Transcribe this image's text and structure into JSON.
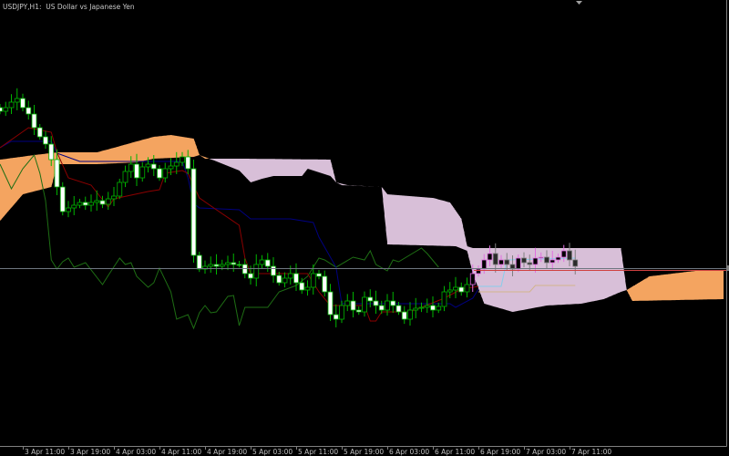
{
  "window": {
    "title": "USDJPY,H1:  US Dollar vs Japanese Yen"
  },
  "colors": {
    "background": "#000000",
    "kumo_bullish": "#f4a460",
    "kumo_bearish": "#d8bfd8",
    "tenkan": "#8b0000",
    "kijun": "#000080",
    "chikou": "#1e6e14",
    "bull_candle_outline": "#00b400",
    "bear_candle_fill": "#ffffff",
    "grid_axis": "#808080",
    "bid_line": "#6e7680",
    "red_line": "#d04040",
    "light_blue_line": "#87ceeb",
    "tan_line": "#d2b48c"
  },
  "chart_data": {
    "type": "candlestick",
    "symbol": "USDJPY",
    "timeframe": "H1",
    "title": "USDJPY,H1:  US Dollar vs Japanese Yen",
    "x_tick_labels": [
      "3 Apr 11:00",
      "3 Apr 19:00",
      "4 Apr 03:00",
      "4 Apr 11:00",
      "4 Apr 19:00",
      "5 Apr 03:00",
      "5 Apr 11:00",
      "5 Apr 19:00",
      "6 Apr 03:00",
      "6 Apr 11:00",
      "6 Apr 19:00",
      "7 Apr 03:00",
      "7 Apr 11:00"
    ],
    "ylim": [
      105.1,
      110.0
    ],
    "grid": false,
    "candles": {
      "first_bar": "3 Apr 07:00",
      "close": [
        108.78,
        108.82,
        108.88,
        108.92,
        108.82,
        108.75,
        108.6,
        108.5,
        108.42,
        108.25,
        107.95,
        107.68,
        107.72,
        107.75,
        107.78,
        107.75,
        107.78,
        107.8,
        107.76,
        107.82,
        107.85,
        108.0,
        108.12,
        108.2,
        108.05,
        108.17,
        108.2,
        108.15,
        108.05,
        108.15,
        108.18,
        108.22,
        108.28,
        108.15,
        107.2,
        107.05,
        107.08,
        107.1,
        107.08,
        107.1,
        107.12,
        107.1,
        107.1,
        107.0,
        106.95,
        107.1,
        107.15,
        107.08,
        106.98,
        106.9,
        106.95,
        107.0,
        106.9,
        106.82,
        106.85,
        107.0,
        106.97,
        106.8,
        106.55,
        106.5,
        106.65,
        106.7,
        106.6,
        106.58,
        106.74,
        106.7,
        106.65,
        106.6,
        106.7,
        106.65,
        106.58,
        106.5,
        106.6,
        106.62,
        106.63,
        106.65,
        106.6,
        106.64,
        106.8,
        106.82,
        106.85,
        106.8,
        106.88,
        107.0,
        107.05,
        107.15,
        107.22,
        107.1,
        107.15,
        107.1,
        107.05,
        107.17,
        107.12,
        107.1,
        107.17,
        107.18,
        107.12,
        107.15,
        107.18,
        107.25,
        107.15,
        107.08
      ]
    },
    "series": {
      "senkou_span_a": [
        [
          "3 Apr 07:00",
          108.25
        ],
        [
          "3 Apr 13:00",
          108.3
        ],
        [
          "3 Apr 17:00",
          108.33
        ],
        [
          "4 Apr 00:00",
          108.33
        ],
        [
          "4 Apr 03:00",
          108.38
        ],
        [
          "4 Apr 07:00",
          108.45
        ],
        [
          "4 Apr 10:00",
          108.5
        ],
        [
          "4 Apr 13:00",
          108.52
        ],
        [
          "4 Apr 17:00",
          108.48
        ],
        [
          "4 Apr 18:00",
          108.3
        ],
        [
          "4 Apr 21:00",
          108.23
        ],
        [
          "5 Apr 01:00",
          108.13
        ],
        [
          "5 Apr 03:00",
          108.0
        ],
        [
          "5 Apr 05:00",
          108.04
        ],
        [
          "5 Apr 07:00",
          108.07
        ],
        [
          "5 Apr 12:00",
          108.07
        ],
        [
          "5 Apr 13:00",
          108.15
        ],
        [
          "5 Apr 14:00",
          108.13
        ],
        [
          "5 Apr 17:00",
          108.07
        ],
        [
          "5 Apr 18:00",
          108.0
        ],
        [
          "5 Apr 19:00",
          107.97
        ],
        [
          "6 Apr 02:00",
          107.95
        ],
        [
          "6 Apr 03:00",
          107.32
        ],
        [
          "6 Apr 15:00",
          107.3
        ],
        [
          "6 Apr 17:00",
          107.25
        ],
        [
          "6 Apr 18:00",
          107.0
        ],
        [
          "6 Apr 20:00",
          106.67
        ],
        [
          "7 Apr 01:00",
          106.58
        ],
        [
          "7 Apr 07:00",
          106.65
        ],
        [
          "7 Apr 13:00",
          106.67
        ],
        [
          "7 Apr 17:00",
          106.72
        ],
        [
          "7 Apr 20:00",
          106.8
        ],
        [
          "7 Apr 21:00",
          106.82
        ],
        [
          "8 Apr 01:00",
          106.97
        ],
        [
          "8 Apr 05:00",
          107.0
        ],
        [
          "8 Apr 09:00",
          107.03
        ],
        [
          "8 Apr 14:00",
          107.03
        ]
      ],
      "senkou_span_b": [
        [
          "3 Apr 07:00",
          107.58
        ],
        [
          "3 Apr 11:00",
          107.87
        ],
        [
          "3 Apr 16:00",
          107.95
        ],
        [
          "3 Apr 17:00",
          108.2
        ],
        [
          "4 Apr 00:00",
          108.2
        ],
        [
          "4 Apr 07:00",
          108.22
        ],
        [
          "4 Apr 10:00",
          108.26
        ],
        [
          "4 Apr 17:00",
          108.28
        ],
        [
          "4 Apr 18:00",
          108.3
        ],
        [
          "4 Apr 19:00",
          108.26
        ],
        [
          "5 Apr 02:00",
          108.26
        ],
        [
          "5 Apr 17:00",
          108.25
        ],
        [
          "5 Apr 18:00",
          108.0
        ],
        [
          "5 Apr 20:00",
          107.97
        ],
        [
          "6 Apr 02:00",
          107.95
        ],
        [
          "6 Apr 03:00",
          107.87
        ],
        [
          "6 Apr 11:00",
          107.83
        ],
        [
          "6 Apr 14:00",
          107.78
        ],
        [
          "6 Apr 16:00",
          107.6
        ],
        [
          "6 Apr 17:00",
          107.3
        ],
        [
          "6 Apr 18:00",
          107.28
        ],
        [
          "7 Apr 20:00",
          107.28
        ],
        [
          "7 Apr 21:00",
          106.82
        ],
        [
          "7 Apr 22:00",
          106.7
        ],
        [
          "8 Apr 14:00",
          106.72
        ]
      ],
      "tenkan_sen": [
        [
          "3 Apr 07:00",
          108.38
        ],
        [
          "3 Apr 12:00",
          108.6
        ],
        [
          "3 Apr 16:00",
          108.55
        ],
        [
          "3 Apr 17:00",
          108.33
        ],
        [
          "3 Apr 19:00",
          108.05
        ],
        [
          "3 Apr 23:00",
          107.97
        ],
        [
          "4 Apr 02:00",
          107.73
        ],
        [
          "4 Apr 03:00",
          107.82
        ],
        [
          "4 Apr 09:00",
          107.9
        ],
        [
          "4 Apr 11:00",
          107.92
        ],
        [
          "4 Apr 12:00",
          108.1
        ],
        [
          "4 Apr 15:00",
          108.13
        ],
        [
          "4 Apr 16:00",
          108.1
        ],
        [
          "4 Apr 18:00",
          107.83
        ],
        [
          "4 Apr 21:00",
          107.7
        ],
        [
          "5 Apr 01:00",
          107.53
        ],
        [
          "5 Apr 02:00",
          107.17
        ],
        [
          "5 Apr 03:00",
          107.0
        ],
        [
          "5 Apr 13:00",
          107.0
        ],
        [
          "5 Apr 15:00",
          106.8
        ],
        [
          "5 Apr 17:00",
          106.65
        ],
        [
          "5 Apr 23:00",
          106.65
        ],
        [
          "6 Apr 00:00",
          106.48
        ],
        [
          "6 Apr 01:00",
          106.48
        ],
        [
          "6 Apr 02:00",
          106.58
        ],
        [
          "6 Apr 07:00",
          106.58
        ],
        [
          "6 Apr 09:00",
          106.63
        ],
        [
          "6 Apr 13:00",
          106.73
        ],
        [
          "6 Apr 16:00",
          106.83
        ],
        [
          "6 Apr 19:00",
          106.86
        ]
      ],
      "kijun_sen": [
        [
          "3 Apr 07:00",
          108.38
        ],
        [
          "3 Apr 09:00",
          108.45
        ],
        [
          "3 Apr 16:00",
          108.45
        ],
        [
          "3 Apr 17:00",
          108.32
        ],
        [
          "3 Apr 21:00",
          108.23
        ],
        [
          "4 Apr 15:00",
          108.23
        ],
        [
          "4 Apr 16:00",
          108.05
        ],
        [
          "4 Apr 17:00",
          107.77
        ],
        [
          "4 Apr 18:00",
          107.72
        ],
        [
          "5 Apr 01:00",
          107.7
        ],
        [
          "5 Apr 03:00",
          107.6
        ],
        [
          "5 Apr 10:00",
          107.6
        ],
        [
          "5 Apr 14:00",
          107.56
        ],
        [
          "5 Apr 15:00",
          107.4
        ],
        [
          "5 Apr 18:00",
          107.07
        ],
        [
          "5 Apr 19:00",
          106.67
        ],
        [
          "6 Apr 14:00",
          106.67
        ],
        [
          "6 Apr 15:00",
          106.63
        ],
        [
          "6 Apr 18:00",
          106.73
        ],
        [
          "6 Apr 19:00",
          106.83
        ]
      ],
      "chikou_span": [
        [
          "3 Apr 07:00",
          108.2
        ],
        [
          "3 Apr 09:00",
          107.93
        ],
        [
          "3 Apr 11:00",
          108.15
        ],
        [
          "3 Apr 13:00",
          108.3
        ],
        [
          "3 Apr 14:00",
          108.1
        ],
        [
          "3 Apr 15:00",
          107.8
        ],
        [
          "3 Apr 16:00",
          107.15
        ],
        [
          "3 Apr 17:00",
          107.05
        ],
        [
          "3 Apr 18:00",
          107.13
        ],
        [
          "3 Apr 19:00",
          107.17
        ],
        [
          "3 Apr 20:00",
          107.07
        ],
        [
          "3 Apr 22:00",
          107.12
        ],
        [
          "4 Apr 01:00",
          106.88
        ],
        [
          "4 Apr 02:00",
          106.98
        ],
        [
          "4 Apr 04:00",
          107.17
        ],
        [
          "4 Apr 05:00",
          107.1
        ],
        [
          "4 Apr 06:00",
          107.12
        ],
        [
          "4 Apr 07:00",
          106.97
        ],
        [
          "4 Apr 09:00",
          106.85
        ],
        [
          "4 Apr 10:00",
          106.9
        ],
        [
          "4 Apr 11:00",
          107.06
        ],
        [
          "4 Apr 13:00",
          106.8
        ],
        [
          "4 Apr 14:00",
          106.5
        ],
        [
          "4 Apr 16:00",
          106.55
        ],
        [
          "4 Apr 17:00",
          106.4
        ],
        [
          "4 Apr 18:00",
          106.57
        ],
        [
          "4 Apr 19:00",
          106.65
        ],
        [
          "4 Apr 20:00",
          106.57
        ],
        [
          "4 Apr 21:00",
          106.58
        ],
        [
          "4 Apr 23:00",
          106.75
        ],
        [
          "5 Apr 00:00",
          106.76
        ],
        [
          "5 Apr 01:00",
          106.43
        ],
        [
          "5 Apr 02:00",
          106.63
        ],
        [
          "5 Apr 06:00",
          106.63
        ],
        [
          "5 Apr 08:00",
          106.8
        ],
        [
          "5 Apr 11:00",
          106.87
        ],
        [
          "5 Apr 13:00",
          106.97
        ],
        [
          "5 Apr 15:00",
          107.17
        ],
        [
          "5 Apr 16:00",
          107.15
        ],
        [
          "5 Apr 18:00",
          107.07
        ],
        [
          "5 Apr 21:00",
          107.18
        ],
        [
          "5 Apr 23:00",
          107.15
        ],
        [
          "6 Apr 00:00",
          107.25
        ],
        [
          "6 Apr 01:00",
          107.1
        ],
        [
          "6 Apr 03:00",
          107.03
        ],
        [
          "6 Apr 04:00",
          107.15
        ],
        [
          "6 Apr 05:00",
          107.13
        ],
        [
          "6 Apr 09:00",
          107.28
        ],
        [
          "6 Apr 10:00",
          107.22
        ],
        [
          "6 Apr 12:00",
          107.07
        ]
      ],
      "light_blue_line": [
        [
          "6 Apr 19:00",
          106.86
        ],
        [
          "6 Apr 23:00",
          106.86
        ],
        [
          "7 Apr 00:00",
          107.15
        ],
        [
          "7 Apr 12:00",
          107.17
        ]
      ],
      "tan_line": [
        [
          "6 Apr 19:00",
          106.8
        ],
        [
          "7 Apr 04:00",
          106.8
        ],
        [
          "7 Apr 05:00",
          106.87
        ],
        [
          "7 Apr 12:00",
          106.87
        ]
      ]
    },
    "bid_price": 107.06,
    "red_level": 107.04
  }
}
